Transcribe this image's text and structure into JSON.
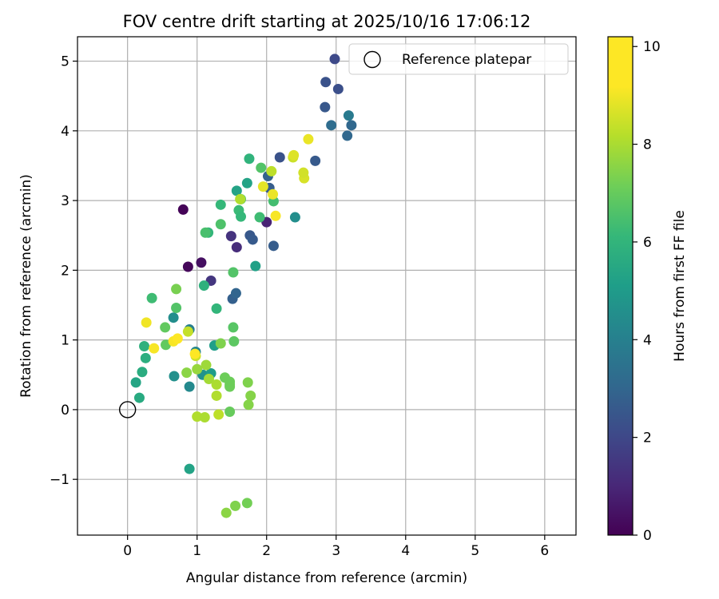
{
  "chart_data": {
    "type": "scatter",
    "title": "FOV centre drift starting at 2025/10/16 17:06:12",
    "xlabel": "Angular distance from reference (arcmin)",
    "ylabel": "Rotation from reference (arcmin)",
    "xlim": [
      -0.72,
      6.45
    ],
    "ylim": [
      -1.8,
      5.35
    ],
    "xticks": [
      0,
      1,
      2,
      3,
      4,
      5,
      6
    ],
    "yticks": [
      -1,
      0,
      1,
      2,
      3,
      4,
      5
    ],
    "xtick_labels": [
      "0",
      "1",
      "2",
      "3",
      "4",
      "5",
      "6"
    ],
    "ytick_labels": [
      "−1",
      "0",
      "1",
      "2",
      "3",
      "4",
      "5"
    ],
    "grid": true,
    "colormap": "viridis",
    "colorbar": {
      "label": "Hours from first FF file",
      "range": [
        0,
        10.2
      ],
      "ticks": [
        0,
        2,
        4,
        6,
        8,
        10
      ],
      "tick_labels": [
        "0",
        "2",
        "4",
        "6",
        "8",
        "10"
      ]
    },
    "legend": {
      "placement": "top-right",
      "entries": [
        {
          "label": "Reference platepar",
          "marker": "open-circle",
          "color": "#000000"
        }
      ]
    },
    "reference_point": {
      "x": 0,
      "y": 0
    },
    "points": [
      {
        "x": 0.8,
        "y": 2.87,
        "t": 0.1
      },
      {
        "x": 0.87,
        "y": 2.05,
        "t": 0.2
      },
      {
        "x": 1.06,
        "y": 2.11,
        "t": 0.4
      },
      {
        "x": 2.0,
        "y": 2.69,
        "t": 1.0
      },
      {
        "x": 1.57,
        "y": 2.33,
        "t": 1.3
      },
      {
        "x": 1.49,
        "y": 2.49,
        "t": 1.5
      },
      {
        "x": 1.2,
        "y": 1.85,
        "t": 1.6
      },
      {
        "x": 2.98,
        "y": 5.03,
        "t": 2.3
      },
      {
        "x": 2.85,
        "y": 4.7,
        "t": 2.6
      },
      {
        "x": 3.03,
        "y": 4.6,
        "t": 2.5
      },
      {
        "x": 2.19,
        "y": 3.62,
        "t": 2.6
      },
      {
        "x": 2.84,
        "y": 4.34,
        "t": 2.8
      },
      {
        "x": 2.7,
        "y": 3.57,
        "t": 2.9
      },
      {
        "x": 1.76,
        "y": 2.5,
        "t": 2.8
      },
      {
        "x": 1.8,
        "y": 2.44,
        "t": 2.9
      },
      {
        "x": 2.1,
        "y": 2.35,
        "t": 3.0
      },
      {
        "x": 1.51,
        "y": 1.59,
        "t": 3.1
      },
      {
        "x": 1.56,
        "y": 1.67,
        "t": 3.3
      },
      {
        "x": 2.04,
        "y": 3.18,
        "t": 3.0
      },
      {
        "x": 2.02,
        "y": 3.35,
        "t": 3.2
      },
      {
        "x": 2.93,
        "y": 4.08,
        "t": 3.6
      },
      {
        "x": 3.16,
        "y": 3.93,
        "t": 3.4
      },
      {
        "x": 3.22,
        "y": 4.08,
        "t": 3.4
      },
      {
        "x": 3.18,
        "y": 4.22,
        "t": 4.2
      },
      {
        "x": 0.89,
        "y": 1.15,
        "t": 4.4
      },
      {
        "x": 0.89,
        "y": 0.33,
        "t": 4.8
      },
      {
        "x": 0.66,
        "y": 1.32,
        "t": 5.0
      },
      {
        "x": 0.67,
        "y": 0.48,
        "t": 5.1
      },
      {
        "x": 0.98,
        "y": 0.83,
        "t": 4.7
      },
      {
        "x": 1.08,
        "y": 0.5,
        "t": 5.2
      },
      {
        "x": 1.2,
        "y": 0.52,
        "t": 5.6
      },
      {
        "x": 1.25,
        "y": 0.92,
        "t": 5.7
      },
      {
        "x": 1.57,
        "y": 3.14,
        "t": 5.9
      },
      {
        "x": 1.72,
        "y": 3.25,
        "t": 5.9
      },
      {
        "x": 2.41,
        "y": 2.76,
        "t": 5.0
      },
      {
        "x": 1.84,
        "y": 2.06,
        "t": 5.8
      },
      {
        "x": 0.89,
        "y": -0.85,
        "t": 5.9
      },
      {
        "x": 0.17,
        "y": 0.17,
        "t": 6.2
      },
      {
        "x": 0.12,
        "y": 0.39,
        "t": 6.0
      },
      {
        "x": 0.21,
        "y": 0.54,
        "t": 6.3
      },
      {
        "x": 0.26,
        "y": 0.74,
        "t": 6.4
      },
      {
        "x": 0.24,
        "y": 0.91,
        "t": 6.5
      },
      {
        "x": 1.1,
        "y": 1.78,
        "t": 6.5
      },
      {
        "x": 1.28,
        "y": 1.45,
        "t": 6.7
      },
      {
        "x": 1.34,
        "y": 2.94,
        "t": 6.8
      },
      {
        "x": 1.16,
        "y": 2.54,
        "t": 6.7
      },
      {
        "x": 1.75,
        "y": 3.6,
        "t": 6.6
      },
      {
        "x": 1.6,
        "y": 2.86,
        "t": 6.9
      },
      {
        "x": 1.63,
        "y": 2.77,
        "t": 6.8
      },
      {
        "x": 1.9,
        "y": 2.76,
        "t": 7.0
      },
      {
        "x": 2.1,
        "y": 2.99,
        "t": 7.1
      },
      {
        "x": 0.35,
        "y": 1.6,
        "t": 7.0
      },
      {
        "x": 1.12,
        "y": 2.54,
        "t": 7.2
      },
      {
        "x": 1.34,
        "y": 2.66,
        "t": 7.3
      },
      {
        "x": 1.92,
        "y": 3.47,
        "t": 7.4
      },
      {
        "x": 1.63,
        "y": 3.02,
        "t": 7.6
      },
      {
        "x": 1.52,
        "y": 1.97,
        "t": 7.4
      },
      {
        "x": 1.52,
        "y": 1.18,
        "t": 7.5
      },
      {
        "x": 1.53,
        "y": 0.98,
        "t": 7.6
      },
      {
        "x": 0.7,
        "y": 1.46,
        "t": 7.4
      },
      {
        "x": 0.54,
        "y": 1.18,
        "t": 7.7
      },
      {
        "x": 0.55,
        "y": 0.93,
        "t": 7.7
      },
      {
        "x": 0.7,
        "y": 1.73,
        "t": 8.1
      },
      {
        "x": 1.34,
        "y": 0.95,
        "t": 8.2
      },
      {
        "x": 1.4,
        "y": 0.46,
        "t": 7.9
      },
      {
        "x": 1.47,
        "y": 0.36,
        "t": 8.0
      },
      {
        "x": 1.47,
        "y": 0.4,
        "t": 7.9
      },
      {
        "x": 1.47,
        "y": 0.33,
        "t": 7.9
      },
      {
        "x": 1.47,
        "y": -0.03,
        "t": 7.8
      },
      {
        "x": 1.73,
        "y": 0.39,
        "t": 8.2
      },
      {
        "x": 1.77,
        "y": 0.2,
        "t": 8.3
      },
      {
        "x": 1.74,
        "y": 0.07,
        "t": 8.3
      },
      {
        "x": 1.72,
        "y": -1.34,
        "t": 8.0
      },
      {
        "x": 1.55,
        "y": -1.38,
        "t": 8.2
      },
      {
        "x": 1.42,
        "y": -1.48,
        "t": 8.4
      },
      {
        "x": 0.85,
        "y": 0.53,
        "t": 8.4
      },
      {
        "x": 1.0,
        "y": 0.58,
        "t": 8.6
      },
      {
        "x": 1.13,
        "y": 0.64,
        "t": 8.7
      },
      {
        "x": 1.17,
        "y": 0.44,
        "t": 8.8
      },
      {
        "x": 1.28,
        "y": 0.36,
        "t": 8.9
      },
      {
        "x": 1.28,
        "y": 0.2,
        "t": 9.0
      },
      {
        "x": 1.0,
        "y": -0.1,
        "t": 9.0
      },
      {
        "x": 1.11,
        "y": -0.11,
        "t": 8.9
      },
      {
        "x": 1.31,
        "y": -0.07,
        "t": 9.2
      },
      {
        "x": 0.87,
        "y": 1.12,
        "t": 9.3
      },
      {
        "x": 0.98,
        "y": 0.77,
        "t": 9.4
      },
      {
        "x": 1.62,
        "y": 3.02,
        "t": 9.0
      },
      {
        "x": 2.07,
        "y": 3.42,
        "t": 9.2
      },
      {
        "x": 2.54,
        "y": 3.32,
        "t": 9.6
      },
      {
        "x": 2.53,
        "y": 3.4,
        "t": 9.5
      },
      {
        "x": 2.38,
        "y": 3.62,
        "t": 9.4
      },
      {
        "x": 2.39,
        "y": 3.65,
        "t": 9.7
      },
      {
        "x": 2.6,
        "y": 3.88,
        "t": 9.9
      },
      {
        "x": 1.95,
        "y": 3.2,
        "t": 9.8
      },
      {
        "x": 2.09,
        "y": 3.09,
        "t": 9.9
      },
      {
        "x": 2.13,
        "y": 2.78,
        "t": 10.1
      },
      {
        "x": 0.27,
        "y": 1.25,
        "t": 10.0
      },
      {
        "x": 0.38,
        "y": 0.88,
        "t": 10.1
      },
      {
        "x": 0.66,
        "y": 0.98,
        "t": 10.1
      },
      {
        "x": 0.72,
        "y": 1.02,
        "t": 10.2
      },
      {
        "x": 0.97,
        "y": 0.8,
        "t": 10.2
      }
    ]
  }
}
